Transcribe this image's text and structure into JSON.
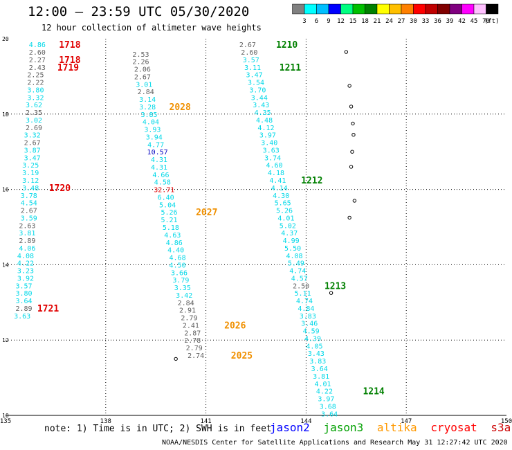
{
  "header": {
    "title": "12:00 – 23:59 UTC 05/30/2020",
    "subtitle": "12 hour collection of altimeter wave heights"
  },
  "legend": {
    "values": [
      "3",
      "6",
      "9",
      "12",
      "15",
      "18",
      "21",
      "24",
      "27",
      "30",
      "33",
      "36",
      "39",
      "42",
      "45",
      "70"
    ],
    "unit": "(ft)",
    "colors": [
      "#808080",
      "#00ffff",
      "#00bfff",
      "#0000ff",
      "#00ff80",
      "#00c000",
      "#008000",
      "#ffff00",
      "#ffc000",
      "#ff8000",
      "#ff0000",
      "#c00000",
      "#800000",
      "#800080",
      "#ff00ff",
      "#ffc0ff",
      "#000000"
    ]
  },
  "note": "note:  1) Time is in UTC; 2) SWH is in feet",
  "satellites": [
    {
      "name": "jason2",
      "color": "#0000ff"
    },
    {
      "name": "jason3",
      "color": "#00a000"
    },
    {
      "name": "altika",
      "color": "#ff9900"
    },
    {
      "name": "cryosat",
      "color": "#ff0000"
    },
    {
      "name": "s3a",
      "color": "#cc0000"
    }
  ],
  "footer": "NOAA/NESDIS Center for Satellite Applications and Research   May 31 12:27:42 UTC 2020",
  "chart_data": {
    "type": "scatter",
    "xlim": [
      135,
      150
    ],
    "ylim": [
      10,
      20
    ],
    "x_ticks": [
      "135",
      "138",
      "141",
      "144",
      "147",
      "150"
    ],
    "y_ticks": [
      "10",
      "12",
      "14",
      "16",
      "18",
      "20"
    ],
    "grid": true,
    "series": [
      {
        "name": "s3a",
        "color": "#e00000",
        "points": [
          {
            "x": 135.95,
            "y": 19.85,
            "v": "4.86",
            "c": "#00d8e8"
          },
          {
            "x": 135.95,
            "y": 19.65,
            "v": "2.60",
            "c": "#606060"
          },
          {
            "x": 135.95,
            "y": 19.45,
            "v": "2.27",
            "c": "#606060"
          },
          {
            "x": 135.95,
            "y": 19.25,
            "v": "2.43",
            "c": "#606060"
          },
          {
            "x": 135.9,
            "y": 19.05,
            "v": "2.25",
            "c": "#606060"
          },
          {
            "x": 135.9,
            "y": 18.85,
            "v": "2.22",
            "c": "#606060"
          },
          {
            "x": 135.9,
            "y": 18.65,
            "v": "3.80",
            "c": "#00d8e8"
          },
          {
            "x": 135.9,
            "y": 18.45,
            "v": "3.32",
            "c": "#00d8e8"
          },
          {
            "x": 135.85,
            "y": 18.25,
            "v": "3.62",
            "c": "#00d8e8"
          },
          {
            "x": 135.85,
            "y": 18.05,
            "v": "2.35",
            "c": "#606060"
          },
          {
            "x": 135.85,
            "y": 17.85,
            "v": "3.02",
            "c": "#00d8e8"
          },
          {
            "x": 135.85,
            "y": 17.65,
            "v": "2.69",
            "c": "#606060"
          },
          {
            "x": 135.8,
            "y": 17.45,
            "v": "3.32",
            "c": "#00d8e8"
          },
          {
            "x": 135.8,
            "y": 17.25,
            "v": "2.67",
            "c": "#606060"
          },
          {
            "x": 135.8,
            "y": 17.05,
            "v": "3.87",
            "c": "#00d8e8"
          },
          {
            "x": 135.8,
            "y": 16.85,
            "v": "3.47",
            "c": "#00d8e8"
          },
          {
            "x": 135.75,
            "y": 16.65,
            "v": "3.25",
            "c": "#00d8e8"
          },
          {
            "x": 135.75,
            "y": 16.45,
            "v": "3.19",
            "c": "#00d8e8"
          },
          {
            "x": 135.75,
            "y": 16.25,
            "v": "3.12",
            "c": "#00d8e8"
          },
          {
            "x": 135.75,
            "y": 16.05,
            "v": "3.48",
            "c": "#00d8e8"
          },
          {
            "x": 135.7,
            "y": 15.85,
            "v": "3.78",
            "c": "#00d8e8"
          },
          {
            "x": 135.7,
            "y": 15.65,
            "v": "4.54",
            "c": "#00d8e8"
          },
          {
            "x": 135.7,
            "y": 15.45,
            "v": "2.67",
            "c": "#606060"
          },
          {
            "x": 135.7,
            "y": 15.25,
            "v": "3.59",
            "c": "#00d8e8"
          },
          {
            "x": 135.65,
            "y": 15.05,
            "v": "2.63",
            "c": "#606060"
          },
          {
            "x": 135.65,
            "y": 14.85,
            "v": "3.81",
            "c": "#00d8e8"
          },
          {
            "x": 135.65,
            "y": 14.65,
            "v": "2.89",
            "c": "#606060"
          },
          {
            "x": 135.65,
            "y": 14.45,
            "v": "4.06",
            "c": "#00d8e8"
          },
          {
            "x": 135.6,
            "y": 14.25,
            "v": "4.08",
            "c": "#00d8e8"
          },
          {
            "x": 135.6,
            "y": 14.05,
            "v": "4.22",
            "c": "#00d8e8"
          },
          {
            "x": 135.6,
            "y": 13.85,
            "v": "3.23",
            "c": "#00d8e8"
          },
          {
            "x": 135.6,
            "y": 13.65,
            "v": "3.92",
            "c": "#00d8e8"
          },
          {
            "x": 135.55,
            "y": 13.45,
            "v": "3.57",
            "c": "#00d8e8"
          },
          {
            "x": 135.55,
            "y": 13.25,
            "v": "3.80",
            "c": "#00d8e8"
          },
          {
            "x": 135.55,
            "y": 13.05,
            "v": "3.64",
            "c": "#00d8e8"
          },
          {
            "x": 135.55,
            "y": 12.85,
            "v": "2.89",
            "c": "#606060"
          },
          {
            "x": 135.5,
            "y": 12.65,
            "v": "3.63",
            "c": "#00d8e8"
          }
        ]
      },
      {
        "name": "altika",
        "color": "#f09000",
        "points": [
          {
            "x": 139.05,
            "y": 19.6,
            "v": "2.53",
            "c": "#606060"
          },
          {
            "x": 139.05,
            "y": 19.4,
            "v": "2.26",
            "c": "#606060"
          },
          {
            "x": 139.1,
            "y": 19.2,
            "v": "2.06",
            "c": "#606060"
          },
          {
            "x": 139.1,
            "y": 19.0,
            "v": "2.67",
            "c": "#606060"
          },
          {
            "x": 139.15,
            "y": 18.8,
            "v": "3.01",
            "c": "#00d8e8"
          },
          {
            "x": 139.2,
            "y": 18.6,
            "v": "2.84",
            "c": "#606060"
          },
          {
            "x": 139.25,
            "y": 18.4,
            "v": "3.14",
            "c": "#00d8e8"
          },
          {
            "x": 139.25,
            "y": 18.2,
            "v": "3.28",
            "c": "#00d8e8"
          },
          {
            "x": 139.3,
            "y": 18.0,
            "v": "3.85",
            "c": "#00d8e8"
          },
          {
            "x": 139.35,
            "y": 17.8,
            "v": "4.04",
            "c": "#00d8e8"
          },
          {
            "x": 139.4,
            "y": 17.6,
            "v": "3.93",
            "c": "#00d8e8"
          },
          {
            "x": 139.45,
            "y": 17.4,
            "v": "3.94",
            "c": "#00d8e8"
          },
          {
            "x": 139.5,
            "y": 17.2,
            "v": "4.77",
            "c": "#00d8e8"
          },
          {
            "x": 139.55,
            "y": 17.0,
            "v": "10.57",
            "c": "#0000c0"
          },
          {
            "x": 139.6,
            "y": 16.8,
            "v": "4.31",
            "c": "#00d8e8"
          },
          {
            "x": 139.6,
            "y": 16.6,
            "v": "4.31",
            "c": "#00d8e8"
          },
          {
            "x": 139.65,
            "y": 16.4,
            "v": "4.66",
            "c": "#00d8e8"
          },
          {
            "x": 139.7,
            "y": 16.2,
            "v": "4.58",
            "c": "#00d8e8"
          },
          {
            "x": 139.75,
            "y": 16.0,
            "v": "32.71",
            "c": "#e00000"
          },
          {
            "x": 139.8,
            "y": 15.8,
            "v": "6.40",
            "c": "#00d8e8"
          },
          {
            "x": 139.85,
            "y": 15.6,
            "v": "5.04",
            "c": "#00d8e8"
          },
          {
            "x": 139.9,
            "y": 15.4,
            "v": "5.26",
            "c": "#00d8e8"
          },
          {
            "x": 139.9,
            "y": 15.2,
            "v": "5.21",
            "c": "#00d8e8"
          },
          {
            "x": 139.95,
            "y": 15.0,
            "v": "5.18",
            "c": "#00d8e8"
          },
          {
            "x": 140.0,
            "y": 14.8,
            "v": "4.63",
            "c": "#00d8e8"
          },
          {
            "x": 140.05,
            "y": 14.6,
            "v": "4.86",
            "c": "#00d8e8"
          },
          {
            "x": 140.1,
            "y": 14.4,
            "v": "4.40",
            "c": "#00d8e8"
          },
          {
            "x": 140.15,
            "y": 14.2,
            "v": "4.68",
            "c": "#00d8e8"
          },
          {
            "x": 140.15,
            "y": 14.0,
            "v": "4.50",
            "c": "#00d8e8"
          },
          {
            "x": 140.2,
            "y": 13.8,
            "v": "3.66",
            "c": "#00d8e8"
          },
          {
            "x": 140.25,
            "y": 13.6,
            "v": "3.79",
            "c": "#00d8e8"
          },
          {
            "x": 140.3,
            "y": 13.4,
            "v": "3.35",
            "c": "#00d8e8"
          },
          {
            "x": 140.35,
            "y": 13.2,
            "v": "3.42",
            "c": "#00d8e8"
          },
          {
            "x": 140.4,
            "y": 13.0,
            "v": "2.84",
            "c": "#606060"
          },
          {
            "x": 140.45,
            "y": 12.8,
            "v": "2.91",
            "c": "#606060"
          },
          {
            "x": 140.5,
            "y": 12.6,
            "v": "2.79",
            "c": "#606060"
          },
          {
            "x": 140.55,
            "y": 12.4,
            "v": "2.41",
            "c": "#606060"
          },
          {
            "x": 140.6,
            "y": 12.2,
            "v": "2.87",
            "c": "#606060"
          },
          {
            "x": 140.6,
            "y": 12.0,
            "v": "2.78",
            "c": "#606060"
          },
          {
            "x": 140.65,
            "y": 11.8,
            "v": "2.79",
            "c": "#606060"
          },
          {
            "x": 140.7,
            "y": 11.6,
            "v": "2.74",
            "c": "#606060"
          }
        ]
      },
      {
        "name": "jason3",
        "color": "#008000",
        "points": [
          {
            "x": 142.25,
            "y": 19.85,
            "v": "2.67",
            "c": "#606060"
          },
          {
            "x": 142.3,
            "y": 19.65,
            "v": "2.60",
            "c": "#606060"
          },
          {
            "x": 142.35,
            "y": 19.45,
            "v": "3.57",
            "c": "#00d8e8"
          },
          {
            "x": 142.4,
            "y": 19.25,
            "v": "3.11",
            "c": "#00d8e8"
          },
          {
            "x": 142.45,
            "y": 19.05,
            "v": "3.47",
            "c": "#00d8e8"
          },
          {
            "x": 142.5,
            "y": 18.85,
            "v": "3.54",
            "c": "#00d8e8"
          },
          {
            "x": 142.55,
            "y": 18.65,
            "v": "3.70",
            "c": "#00d8e8"
          },
          {
            "x": 142.6,
            "y": 18.45,
            "v": "3.44",
            "c": "#00d8e8"
          },
          {
            "x": 142.65,
            "y": 18.25,
            "v": "3.43",
            "c": "#00d8e8"
          },
          {
            "x": 142.7,
            "y": 18.05,
            "v": "4.35",
            "c": "#00d8e8"
          },
          {
            "x": 142.75,
            "y": 17.85,
            "v": "4.48",
            "c": "#00d8e8"
          },
          {
            "x": 142.8,
            "y": 17.65,
            "v": "4.12",
            "c": "#00d8e8"
          },
          {
            "x": 142.85,
            "y": 17.45,
            "v": "3.97",
            "c": "#00d8e8"
          },
          {
            "x": 142.9,
            "y": 17.25,
            "v": "3.40",
            "c": "#00d8e8"
          },
          {
            "x": 142.95,
            "y": 17.05,
            "v": "3.63",
            "c": "#00d8e8"
          },
          {
            "x": 143.0,
            "y": 16.85,
            "v": "3.74",
            "c": "#00d8e8"
          },
          {
            "x": 143.05,
            "y": 16.65,
            "v": "4.60",
            "c": "#00d8e8"
          },
          {
            "x": 143.1,
            "y": 16.45,
            "v": "4.18",
            "c": "#00d8e8"
          },
          {
            "x": 143.15,
            "y": 16.25,
            "v": "4.41",
            "c": "#00d8e8"
          },
          {
            "x": 143.2,
            "y": 16.05,
            "v": "4.14",
            "c": "#00d8e8"
          },
          {
            "x": 143.25,
            "y": 15.85,
            "v": "4.30",
            "c": "#00d8e8"
          },
          {
            "x": 143.3,
            "y": 15.65,
            "v": "5.65",
            "c": "#00d8e8"
          },
          {
            "x": 143.35,
            "y": 15.45,
            "v": "5.26",
            "c": "#00d8e8"
          },
          {
            "x": 143.4,
            "y": 15.25,
            "v": "4.01",
            "c": "#00d8e8"
          },
          {
            "x": 143.45,
            "y": 15.05,
            "v": "5.02",
            "c": "#00d8e8"
          },
          {
            "x": 143.5,
            "y": 14.85,
            "v": "4.37",
            "c": "#00d8e8"
          },
          {
            "x": 143.55,
            "y": 14.65,
            "v": "4.99",
            "c": "#00d8e8"
          },
          {
            "x": 143.6,
            "y": 14.45,
            "v": "5.50",
            "c": "#00d8e8"
          },
          {
            "x": 143.65,
            "y": 14.25,
            "v": "4.08",
            "c": "#00d8e8"
          },
          {
            "x": 143.7,
            "y": 14.05,
            "v": "5.49",
            "c": "#00d8e8"
          },
          {
            "x": 143.75,
            "y": 13.85,
            "v": "4.74",
            "c": "#00d8e8"
          },
          {
            "x": 143.8,
            "y": 13.65,
            "v": "4.57",
            "c": "#00d8e8"
          },
          {
            "x": 143.85,
            "y": 13.45,
            "v": "2.50",
            "c": "#606060"
          },
          {
            "x": 143.9,
            "y": 13.25,
            "v": "5.11",
            "c": "#00d8e8"
          },
          {
            "x": 143.95,
            "y": 13.05,
            "v": "4.74",
            "c": "#00d8e8"
          },
          {
            "x": 144.0,
            "y": 12.85,
            "v": "4.84",
            "c": "#00d8e8"
          },
          {
            "x": 144.05,
            "y": 12.65,
            "v": "3.83",
            "c": "#00d8e8"
          },
          {
            "x": 144.1,
            "y": 12.45,
            "v": "3.46",
            "c": "#00d8e8"
          },
          {
            "x": 144.15,
            "y": 12.25,
            "v": "4.59",
            "c": "#00d8e8"
          },
          {
            "x": 144.2,
            "y": 12.05,
            "v": "4.39",
            "c": "#00d8e8"
          },
          {
            "x": 144.25,
            "y": 11.85,
            "v": "4.05",
            "c": "#00d8e8"
          },
          {
            "x": 144.3,
            "y": 11.65,
            "v": "3.43",
            "c": "#00d8e8"
          },
          {
            "x": 144.35,
            "y": 11.45,
            "v": "3.83",
            "c": "#00d8e8"
          },
          {
            "x": 144.4,
            "y": 11.25,
            "v": "3.64",
            "c": "#00d8e8"
          },
          {
            "x": 144.45,
            "y": 11.05,
            "v": "3.81",
            "c": "#00d8e8"
          },
          {
            "x": 144.5,
            "y": 10.85,
            "v": "4.01",
            "c": "#00d8e8"
          },
          {
            "x": 144.55,
            "y": 10.65,
            "v": "4.22",
            "c": "#00d8e8"
          },
          {
            "x": 144.6,
            "y": 10.45,
            "v": "3.97",
            "c": "#00d8e8"
          },
          {
            "x": 144.65,
            "y": 10.25,
            "v": "3.68",
            "c": "#00d8e8"
          },
          {
            "x": 144.7,
            "y": 10.05,
            "v": "3.64",
            "c": "#00d8e8"
          }
        ]
      }
    ],
    "pass_labels": [
      {
        "text": "1718",
        "x": 136.6,
        "y": 19.85,
        "color": "#e00000"
      },
      {
        "text": "1718",
        "x": 136.6,
        "y": 19.45,
        "color": "#e00000"
      },
      {
        "text": "1719",
        "x": 136.55,
        "y": 19.25,
        "color": "#e00000"
      },
      {
        "text": "1720",
        "x": 136.3,
        "y": 16.05,
        "color": "#e00000"
      },
      {
        "text": "1721",
        "x": 135.95,
        "y": 12.85,
        "color": "#e00000"
      },
      {
        "text": "2028",
        "x": 139.9,
        "y": 18.2,
        "color": "#f09000"
      },
      {
        "text": "2027",
        "x": 140.7,
        "y": 15.4,
        "color": "#f09000"
      },
      {
        "text": "2026",
        "x": 141.55,
        "y": 12.4,
        "color": "#f09000"
      },
      {
        "text": "2025",
        "x": 141.75,
        "y": 11.6,
        "color": "#f09000"
      },
      {
        "text": "1210",
        "x": 143.1,
        "y": 19.85,
        "color": "#008000"
      },
      {
        "text": "1211",
        "x": 143.2,
        "y": 19.25,
        "color": "#008000"
      },
      {
        "text": "1212",
        "x": 143.85,
        "y": 16.25,
        "color": "#008000"
      },
      {
        "text": "1213",
        "x": 144.55,
        "y": 13.45,
        "color": "#008000"
      },
      {
        "text": "1214",
        "x": 145.7,
        "y": 10.65,
        "color": "#008000"
      }
    ]
  }
}
